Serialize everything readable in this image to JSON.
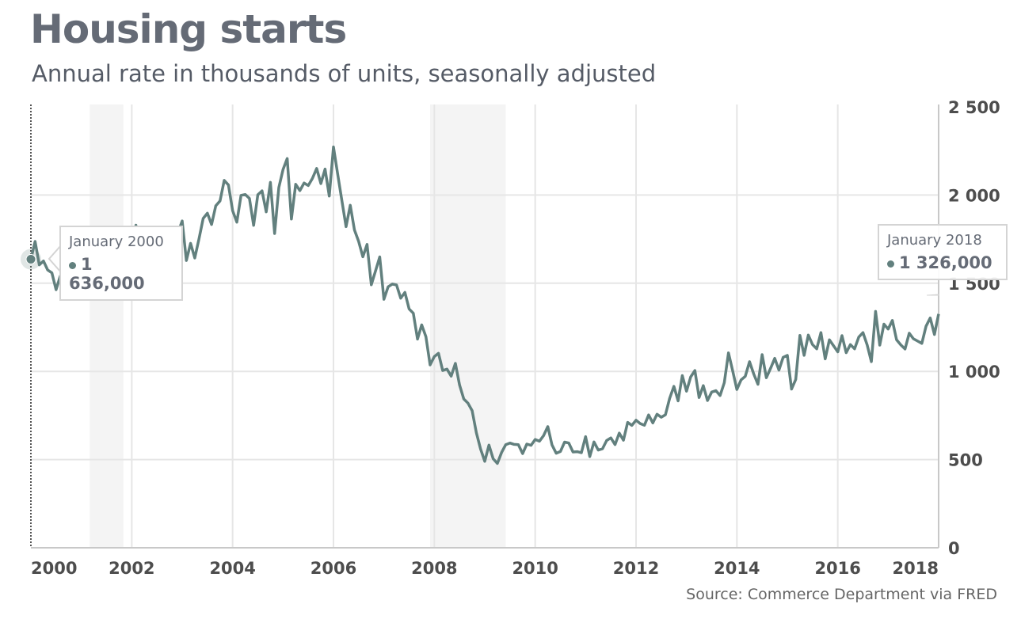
{
  "chart_data": {
    "type": "line",
    "title": "Housing starts",
    "subtitle": "Annual rate in thousands of units, seasonally adjusted",
    "source": "Source: Commerce Department via FRED",
    "xlabel": "",
    "ylabel": "",
    "x_range": [
      2000,
      2018
    ],
    "ylim": [
      0,
      2500
    ],
    "x_ticks": [
      "2000",
      "2002",
      "2004",
      "2006",
      "2008",
      "2010",
      "2012",
      "2014",
      "2016",
      "2018"
    ],
    "y_ticks": [
      "0",
      "500",
      "1 000",
      "1 500",
      "2 000",
      "2 500"
    ],
    "y_axis_position": "right",
    "grid": true,
    "line_color": "#62807e",
    "recession_shading_color": "#f4f4f4",
    "recessions": [
      [
        "2001-03",
        "2001-11"
      ],
      [
        "2007-12",
        "2009-06"
      ]
    ],
    "series": [
      {
        "start": "2000-01",
        "frequency": "monthly",
        "values": [
          1636,
          1737,
          1604,
          1626,
          1575,
          1559,
          1463,
          1541,
          1507,
          1549,
          1551,
          1532,
          1600,
          1625,
          1590,
          1649,
          1605,
          1636,
          1670,
          1567,
          1562,
          1540,
          1602,
          1568,
          1698,
          1829,
          1642,
          1592,
          1764,
          1717,
          1655,
          1633,
          1804,
          1648,
          1753,
          1788,
          1853,
          1629,
          1726,
          1643,
          1751,
          1867,
          1897,
          1833,
          1939,
          1967,
          2083,
          2057,
          1911,
          1846,
          1998,
          2003,
          1981,
          1828,
          2002,
          2024,
          1905,
          2072,
          1782,
          2042,
          2144,
          2207,
          1864,
          2061,
          2025,
          2068,
          2054,
          2095,
          2151,
          2065,
          2147,
          1994,
          2273,
          2119,
          1969,
          1821,
          1942,
          1802,
          1737,
          1650,
          1720,
          1491,
          1570,
          1649,
          1409,
          1480,
          1495,
          1490,
          1415,
          1448,
          1354,
          1330,
          1183,
          1264,
          1197,
          1037,
          1084,
          1103,
          1005,
          1013,
          973,
          1046,
          923,
          844,
          820,
          777,
          652,
          560,
          490,
          582,
          505,
          478,
          540,
          585,
          594,
          586,
          585,
          534,
          588,
          581,
          614,
          604,
          636,
          687,
          583,
          536,
          546,
          599,
          594,
          543,
          545,
          539,
          630,
          517,
          600,
          554,
          561,
          608,
          623,
          585,
          650,
          610,
          711,
          694,
          723,
          704,
          695,
          753,
          708,
          757,
          740,
          754,
          847,
          915,
          833,
          976,
          888,
          969,
          1005,
          852,
          919,
          835,
          883,
          891,
          863,
          936,
          1105,
          1003,
          897,
          952,
          972,
          1055,
          985,
          927,
          1095,
          964,
          1017,
          1074,
          1007,
          1080,
          1091,
          900,
          954,
          1204,
          1091,
          1206,
          1152,
          1128,
          1220,
          1071,
          1179,
          1145,
          1111,
          1203,
          1106,
          1152,
          1128,
          1195,
          1220,
          1150,
          1055,
          1340,
          1149,
          1268,
          1240,
          1289,
          1179,
          1150,
          1127,
          1217,
          1185,
          1172,
          1159,
          1256,
          1303,
          1209,
          1326
        ]
      }
    ],
    "tooltips": [
      {
        "date": "January 2000",
        "value": "1 636,000"
      },
      {
        "date": "January 2018",
        "value": "1 326,000"
      }
    ]
  }
}
